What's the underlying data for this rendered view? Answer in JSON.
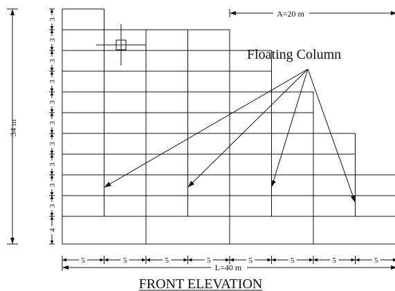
{
  "title": "FRONT ELEVATION",
  "callout_label": "Floating Column",
  "dimensions": {
    "total_height": "34 m",
    "total_length": "L=40 m",
    "setback": "A=20 m",
    "storey_heights": [
      "3",
      "3",
      "3",
      "3",
      "3",
      "3",
      "3",
      "3",
      "3",
      "3",
      "4"
    ],
    "bay_widths": [
      "5",
      "5",
      "5",
      "5",
      "5",
      "5",
      "5",
      "5"
    ]
  },
  "structure": {
    "bays": 8,
    "bay_width_m": 5,
    "storeys": 11,
    "ground_storey_m": 4,
    "typical_storey_m": 3,
    "bay_top_storey": [
      11,
      10,
      10,
      10,
      9,
      7,
      5,
      3
    ],
    "floating_columns_at_x_m": [
      5,
      15,
      25,
      35
    ],
    "ground_columns_at_x_m": [
      0,
      10,
      20,
      30,
      40
    ]
  },
  "colors": {
    "line": "#111111",
    "background": "#ffffff"
  }
}
